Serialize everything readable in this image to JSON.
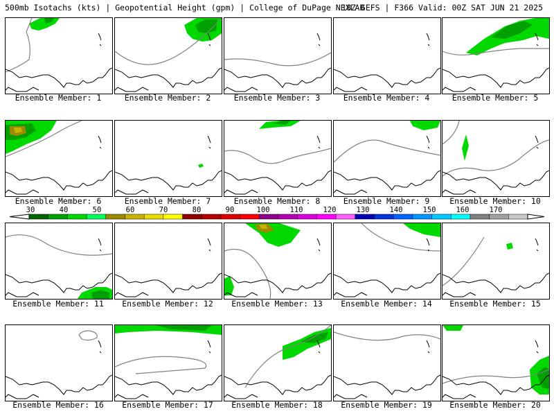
{
  "header": {
    "left_text": "500mb Isotachs (kts) | Geopotential Height (gpm) | College of DuPage NEXLAB",
    "right_text": "18Z GEFS | F366 Valid: 00Z SAT JUN 21 2025"
  },
  "panels": [
    {
      "label": "Ensemble Member: 1"
    },
    {
      "label": "Ensemble Member: 2"
    },
    {
      "label": "Ensemble Member: 3"
    },
    {
      "label": "Ensemble Member: 4"
    },
    {
      "label": "Ensemble Member: 5"
    },
    {
      "label": "Ensemble Member: 6"
    },
    {
      "label": "Ensemble Member: 7"
    },
    {
      "label": "Ensemble Member: 8"
    },
    {
      "label": "Ensemble Member: 9"
    },
    {
      "label": "Ensemble Member: 10"
    },
    {
      "label": "Ensemble Member: 11"
    },
    {
      "label": "Ensemble Member: 12"
    },
    {
      "label": "Ensemble Member: 13"
    },
    {
      "label": "Ensemble Member: 14"
    },
    {
      "label": "Ensemble Member: 15"
    },
    {
      "label": "Ensemble Member: 16"
    },
    {
      "label": "Ensemble Member: 17"
    },
    {
      "label": "Ensemble Member: 18"
    },
    {
      "label": "Ensemble Member: 19"
    },
    {
      "label": "Ensemble Member: 20"
    }
  ],
  "colorbar": {
    "labels": [
      "30",
      "40",
      "50",
      "60",
      "70",
      "80",
      "90",
      "100",
      "110",
      "120",
      "130",
      "140",
      "150",
      "160",
      "170"
    ],
    "colors": [
      "#006400",
      "#00a000",
      "#00d800",
      "#00ff5a",
      "#9c8a00",
      "#c8b400",
      "#e6dc00",
      "#ffff00",
      "#8c0000",
      "#b40000",
      "#dc0000",
      "#ff0000",
      "#8c008c",
      "#b400b4",
      "#dc00dc",
      "#ff00ff",
      "#ff60ff",
      "#0000b4",
      "#0032dc",
      "#0064ff",
      "#0096ff",
      "#00c8ff",
      "#00ffff",
      "#808080",
      "#a0a0a0",
      "#c8c8c8"
    ]
  }
}
